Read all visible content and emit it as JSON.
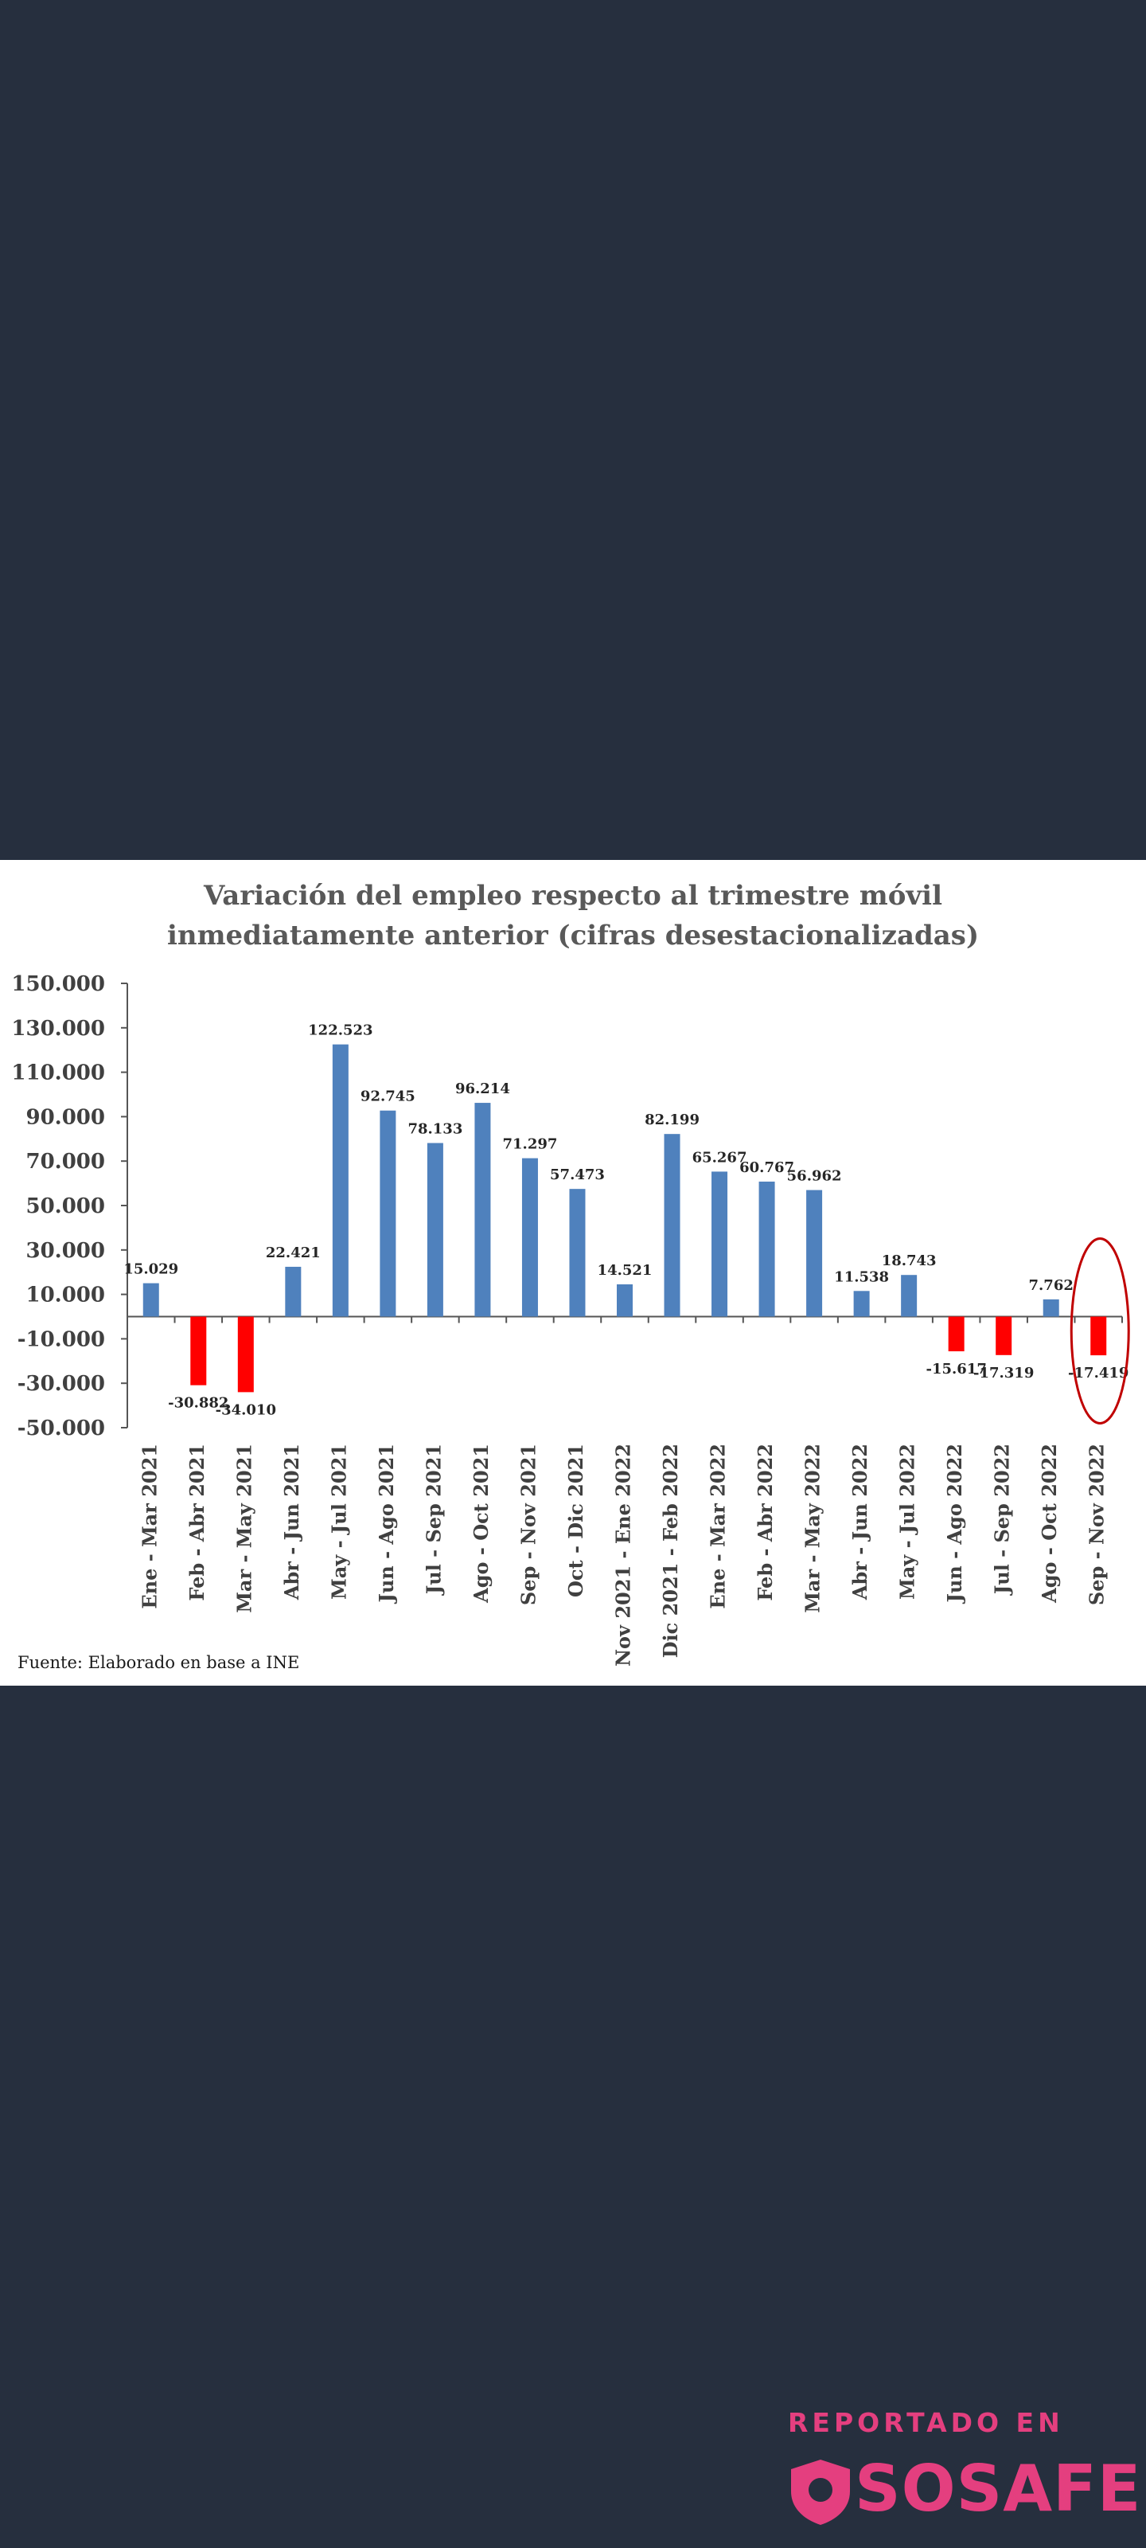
{
  "chart_data": {
    "type": "bar",
    "title": [
      "Variación del empleo respecto al trimestre móvil",
      "inmediatamente anterior (cifras desestacionalizadas)"
    ],
    "categories": [
      "Ene - Mar 2021",
      "Feb - Abr 2021",
      "Mar - May 2021",
      "Abr - Jun 2021",
      "May - Jul 2021",
      "Jun - Ago 2021",
      "Jul - Sep 2021",
      "Ago - Oct 2021",
      "Sep - Nov 2021",
      "Oct - Dic 2021",
      "Nov 2021 - Ene 2022",
      "Dic 2021 - Feb 2022",
      "Ene - Mar 2022",
      "Feb - Abr 2022",
      "Mar - May 2022",
      "Abr - Jun 2022",
      "May - Jul 2022",
      "Jun - Ago 2022",
      "Jul - Sep 2022",
      "Ago - Oct 2022",
      "Sep - Nov 2022"
    ],
    "values": [
      15029,
      -30882,
      -34010,
      22421,
      122523,
      92745,
      78133,
      96214,
      71297,
      57473,
      14521,
      82199,
      65267,
      60767,
      56962,
      11538,
      18743,
      -15617,
      -17319,
      7762,
      -17419
    ],
    "data_labels": [
      "15.029",
      "-30.882",
      "-34.010",
      "22.421",
      "122.523",
      "92.745",
      "78.133",
      "96.214",
      "71.297",
      "57.473",
      "14.521",
      "82.199",
      "65.267",
      "60.767",
      "56.962",
      "11.538",
      "18.743",
      "-15.617",
      "-17.319",
      "7.762",
      "-17.419"
    ],
    "yticks": [
      "150.000",
      "130.000",
      "110.000",
      "90.000",
      "70.000",
      "50.000",
      "30.000",
      "10.000",
      "-10.000",
      "-30.000",
      "-50.000"
    ],
    "ylim": [
      -50000,
      150000
    ],
    "colors": {
      "positive": "#4f81bd",
      "negative": "#ff0000",
      "highlight": "#c00000"
    },
    "highlighted_category": "Sep - Nov 2022",
    "grid": false,
    "legend": "none"
  },
  "source": "Fuente: Elaborado en base a INE",
  "brand": {
    "tag": "REPORTADO EN",
    "name": "SOSAFE",
    "icon": "shield-icon",
    "color": "#e43f7f"
  }
}
